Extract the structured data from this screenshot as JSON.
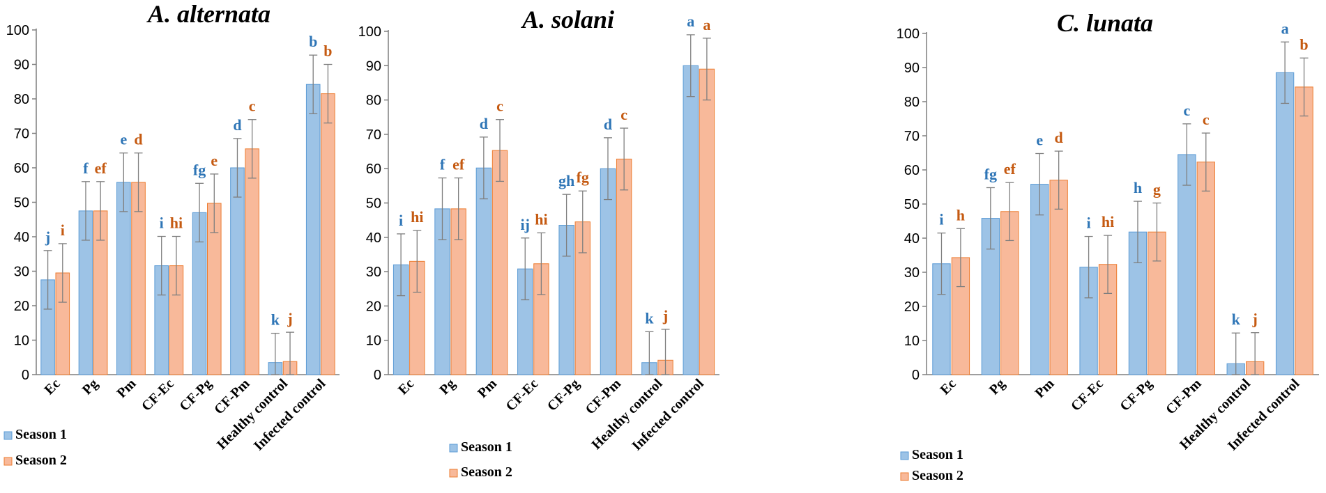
{
  "colors": {
    "season1": "#9dc3e6",
    "season1_edge": "#5b9bd5",
    "season2": "#f8b99a",
    "season2_edge": "#ed7d31",
    "letter1": "#2e75b6",
    "letter2": "#c55a11",
    "axis": "#7f7f7f",
    "error": "#7f7f7f",
    "text": "#000000"
  },
  "chart_data": [
    {
      "type": "bar",
      "title": "A. alternata",
      "ylim": [
        0,
        100
      ],
      "yticks": [
        "0",
        "10",
        "20",
        "30",
        "40",
        "50",
        "60",
        "70",
        "80",
        "90",
        "100"
      ],
      "categories": [
        "Ec",
        "Pg",
        "Pm",
        "CF-Ec",
        "CF-Pg",
        "CF-Pm",
        "Healthy control",
        "Infected control"
      ],
      "legend": [
        "Season 1",
        "Season 2"
      ],
      "series": [
        {
          "name": "Season 1",
          "values": [
            27.5,
            47.5,
            55.8,
            31.6,
            47.0,
            60.0,
            3.5,
            84.2
          ],
          "errors": [
            8.5,
            8.5,
            8.5,
            8.5,
            8.5,
            8.5,
            8.5,
            8.5
          ],
          "letters": [
            "j",
            "f",
            "e",
            "i",
            "fg",
            "d",
            "k",
            "b"
          ]
        },
        {
          "name": "Season 2",
          "values": [
            29.5,
            47.5,
            55.8,
            31.6,
            49.7,
            65.5,
            3.8,
            81.5
          ],
          "errors": [
            8.5,
            8.5,
            8.5,
            8.5,
            8.5,
            8.5,
            8.5,
            8.5
          ],
          "letters": [
            "i",
            "ef",
            "d",
            "hi",
            "e",
            "c",
            "j",
            "b"
          ]
        }
      ]
    },
    {
      "type": "bar",
      "title": "A. solani",
      "ylim": [
        0,
        100
      ],
      "yticks": [
        "0",
        "10",
        "20",
        "30",
        "40",
        "50",
        "60",
        "70",
        "80",
        "90",
        "100"
      ],
      "categories": [
        "Ec",
        "Pg",
        "Pm",
        "CF-Ec",
        "CF-Pg",
        "CF-Pm",
        "Healthy control",
        "Infected control"
      ],
      "legend": [
        "Season 1",
        "Season 2"
      ],
      "series": [
        {
          "name": "Season 1",
          "values": [
            32.0,
            48.3,
            60.2,
            30.8,
            43.5,
            60.0,
            3.5,
            90.0
          ],
          "errors": [
            9.0,
            9.0,
            9.0,
            9.0,
            9.0,
            9.0,
            9.0,
            9.0
          ],
          "letters": [
            "i",
            "f",
            "d",
            "ij",
            "gh",
            "d",
            "k",
            "a"
          ]
        },
        {
          "name": "Season 2",
          "values": [
            33.0,
            48.3,
            65.3,
            32.3,
            44.5,
            62.8,
            4.2,
            89.0
          ],
          "errors": [
            9.0,
            9.0,
            9.0,
            9.0,
            9.0,
            9.0,
            9.0,
            9.0
          ],
          "letters": [
            "hi",
            "ef",
            "c",
            "hi",
            "fg",
            "c",
            "j",
            "a"
          ]
        }
      ]
    },
    {
      "type": "bar",
      "title": "C. lunata",
      "ylim": [
        0,
        100
      ],
      "yticks": [
        "0",
        "10",
        "20",
        "30",
        "40",
        "50",
        "60",
        "70",
        "80",
        "90",
        "100"
      ],
      "categories": [
        "Ec",
        "Pg",
        "Pm",
        "CF-Ec",
        "CF-Pg",
        "CF-Pm",
        "Healthy control",
        "Infected control"
      ],
      "legend": [
        "Season 1",
        "Season 2"
      ],
      "series": [
        {
          "name": "Season 1",
          "values": [
            32.5,
            45.8,
            55.8,
            31.5,
            41.8,
            64.5,
            3.2,
            88.5
          ],
          "errors": [
            9.0,
            9.0,
            9.0,
            9.0,
            9.0,
            9.0,
            9.0,
            9.0
          ],
          "letters": [
            "i",
            "fg",
            "e",
            "i",
            "h",
            "c",
            "k",
            "a"
          ]
        },
        {
          "name": "Season 2",
          "values": [
            34.3,
            47.8,
            57.0,
            32.3,
            41.8,
            62.3,
            3.8,
            84.3
          ],
          "errors": [
            8.5,
            8.5,
            8.5,
            8.5,
            8.5,
            8.5,
            8.5,
            8.5
          ],
          "letters": [
            "h",
            "ef",
            "d",
            "hi",
            "g",
            "c",
            "j",
            "b"
          ]
        }
      ]
    }
  ]
}
